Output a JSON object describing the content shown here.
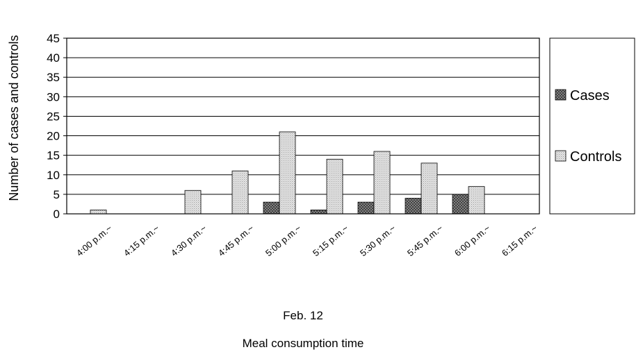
{
  "chart_data": {
    "type": "bar",
    "categories": [
      "4:00 p.m.~",
      "4:15 p.m.~",
      "4:30 p.m.~",
      "4:45 p.m.~",
      "5:00 p.m.~",
      "5:15 p.m.~",
      "5:30 p.m.~",
      "5:45 p.m.~",
      "6:00 p.m.~",
      "6:15 p.m.~"
    ],
    "series": [
      {
        "name": "Cases",
        "values": [
          0,
          0,
          0,
          0,
          3,
          1,
          3,
          4,
          5,
          0
        ],
        "color": "#7a7a7a",
        "pattern": "crosshatch-dark"
      },
      {
        "name": "Controls",
        "values": [
          1,
          0,
          6,
          11,
          21,
          14,
          16,
          13,
          7,
          0
        ],
        "color": "#d9d9d9",
        "pattern": "dots-light"
      }
    ],
    "ylabel": "Number of cases and controls",
    "xlabel_line1": "Feb. 12",
    "xlabel_line2": "Meal consumption time",
    "ylim": [
      0,
      45
    ],
    "yticks": [
      0,
      5,
      10,
      15,
      20,
      25,
      30,
      35,
      40,
      45
    ],
    "grid": true,
    "legend_position": "right"
  }
}
